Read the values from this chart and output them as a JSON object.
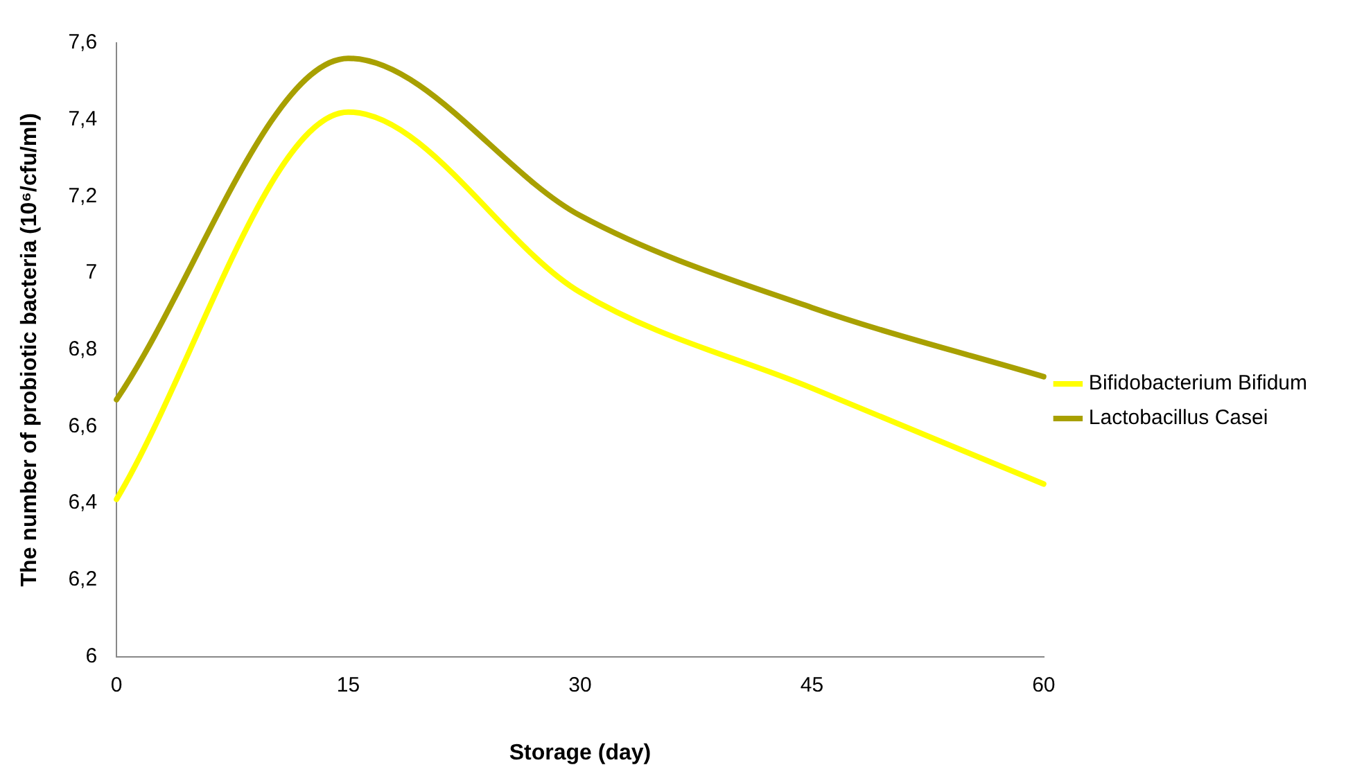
{
  "chart_data": {
    "type": "line",
    "xlabel": "Storage (day)",
    "ylabel": "The number of probiotic bacteria (10⁶/cfu/ml)",
    "categories": [
      "0",
      "15",
      "30",
      "45",
      "60"
    ],
    "series": [
      {
        "name": "Bifidobacterium Bifidum",
        "color": "#ffff00",
        "values": [
          6.41,
          7.42,
          6.95,
          6.7,
          6.45
        ]
      },
      {
        "name": "Lactobacillus Casei",
        "color": "#a8a000",
        "values": [
          6.67,
          7.56,
          7.15,
          6.91,
          6.73
        ]
      }
    ],
    "ylim": [
      6,
      7.6
    ],
    "yticks": [
      6,
      {
        "value": 6.2,
        "label": "6,2"
      },
      {
        "value": 6.4,
        "label": "6,4"
      },
      {
        "value": 6.6,
        "label": "6,6"
      },
      {
        "value": 6.8,
        "label": "6,8"
      },
      7,
      {
        "value": 7.2,
        "label": "7,2"
      },
      {
        "value": 7.4,
        "label": "7,4"
      },
      {
        "value": 7.6,
        "label": "7,6"
      }
    ],
    "grid": false,
    "legend": "right",
    "marker": "none",
    "line_style": "solid"
  }
}
